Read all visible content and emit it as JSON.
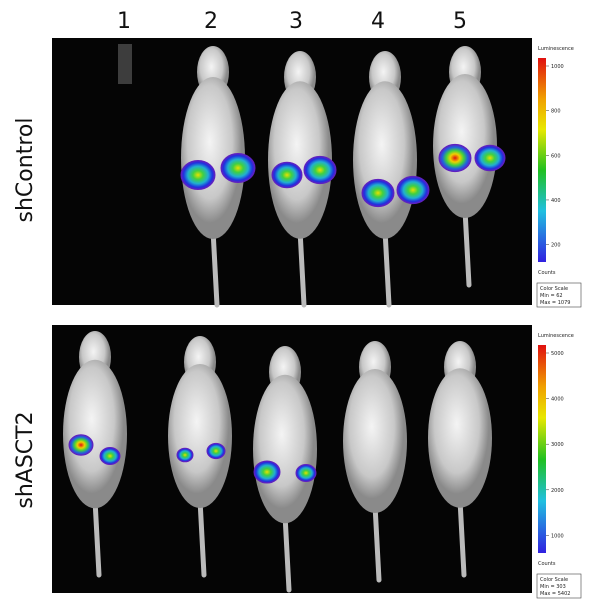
{
  "columns": [
    "1",
    "2",
    "3",
    "4",
    "5"
  ],
  "panels": [
    {
      "label": "shControl",
      "scale": {
        "title": "Luminescence",
        "ticks": [
          1000,
          800,
          600,
          400,
          200
        ],
        "unit": "Counts",
        "box": [
          "Color Scale",
          "Min = 62",
          "Max = 1079"
        ]
      }
    },
    {
      "label": "shASCT2",
      "scale": {
        "title": "Luminescence",
        "ticks": [
          5000,
          4000,
          3000,
          2000,
          1000
        ],
        "unit": "Counts",
        "box": [
          "Color Scale",
          "Min = 303",
          "Max = 5402"
        ]
      }
    }
  ]
}
